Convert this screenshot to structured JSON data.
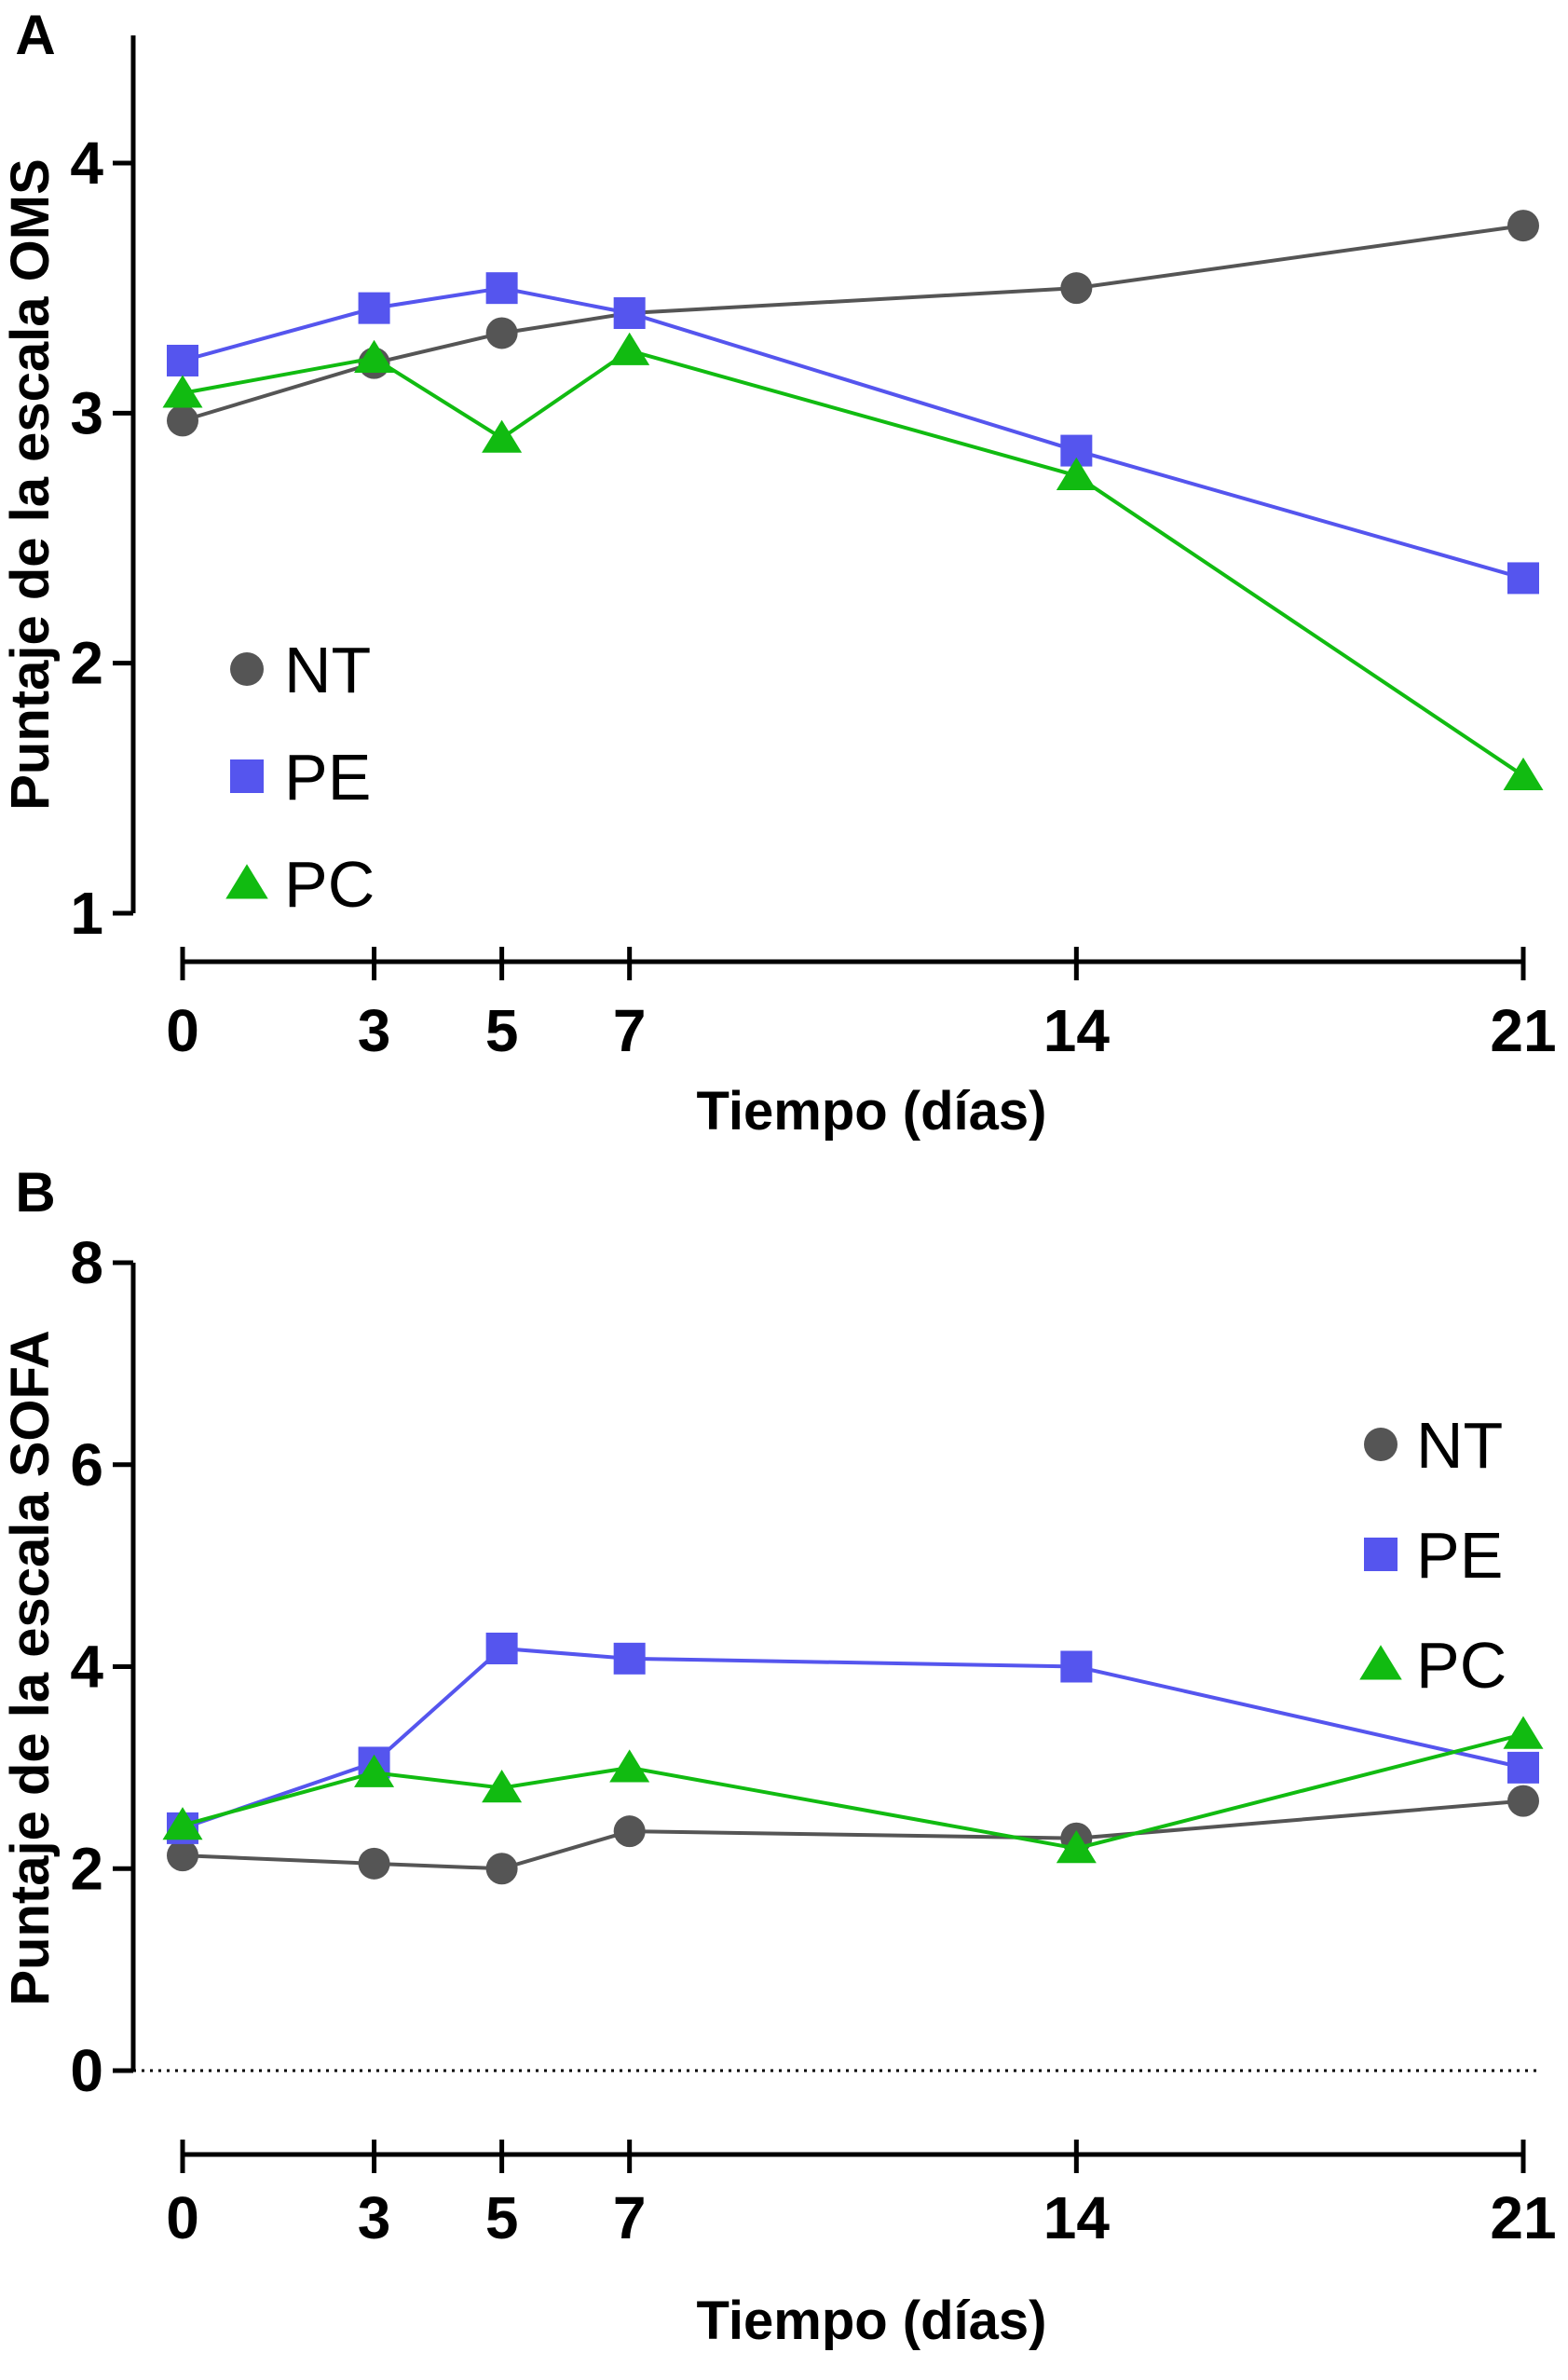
{
  "colors": {
    "NT": "#555555",
    "PE": "#5555ee",
    "PC": "#11bb11"
  },
  "chart_data": [
    {
      "type": "line",
      "panel_label": "A",
      "title": "",
      "xlabel": "Tiempo (días)",
      "ylabel": "Puntaje de la escala OMS",
      "x": [
        0,
        3,
        5,
        7,
        14,
        21
      ],
      "x_tick_labels": [
        "0",
        "3",
        "5",
        "7",
        "14",
        "21"
      ],
      "y_ticks": [
        1,
        2,
        3,
        4
      ],
      "y_tick_labels": [
        "1",
        "2",
        "3",
        "4"
      ],
      "xlim": [
        0,
        21
      ],
      "ylim": [
        1,
        4.5
      ],
      "grid": false,
      "legend_position": "bottom-left",
      "series": [
        {
          "name": "NT",
          "marker": "circle",
          "values": [
            2.97,
            3.2,
            3.32,
            3.4,
            3.5,
            3.75
          ]
        },
        {
          "name": "PE",
          "marker": "square",
          "values": [
            3.21,
            3.42,
            3.5,
            3.4,
            2.85,
            2.34
          ]
        },
        {
          "name": "PC",
          "marker": "triangle",
          "values": [
            3.08,
            3.22,
            2.9,
            3.25,
            2.75,
            1.55
          ]
        }
      ]
    },
    {
      "type": "line",
      "panel_label": "B",
      "title": "",
      "xlabel": "Tiempo (días)",
      "ylabel": "Puntaje de la escala SOFA",
      "x": [
        0,
        3,
        5,
        7,
        14,
        21
      ],
      "x_tick_labels": [
        "0",
        "3",
        "5",
        "7",
        "14",
        "21"
      ],
      "y_ticks": [
        0,
        2,
        4,
        6,
        8
      ],
      "y_tick_labels": [
        "0",
        "2",
        "4",
        "6",
        "8"
      ],
      "xlim": [
        0,
        21
      ],
      "ylim": [
        0,
        8
      ],
      "grid": false,
      "reference_line_y": 0,
      "legend_position": "top-right",
      "series": [
        {
          "name": "NT",
          "marker": "circle",
          "values": [
            2.13,
            2.05,
            2.0,
            2.37,
            2.3,
            2.67
          ]
        },
        {
          "name": "PE",
          "marker": "square",
          "values": [
            2.4,
            3.05,
            4.18,
            4.08,
            4.0,
            3.0
          ]
        },
        {
          "name": "PC",
          "marker": "triangle",
          "values": [
            2.43,
            2.95,
            2.8,
            3.0,
            2.2,
            3.33
          ]
        }
      ]
    }
  ]
}
